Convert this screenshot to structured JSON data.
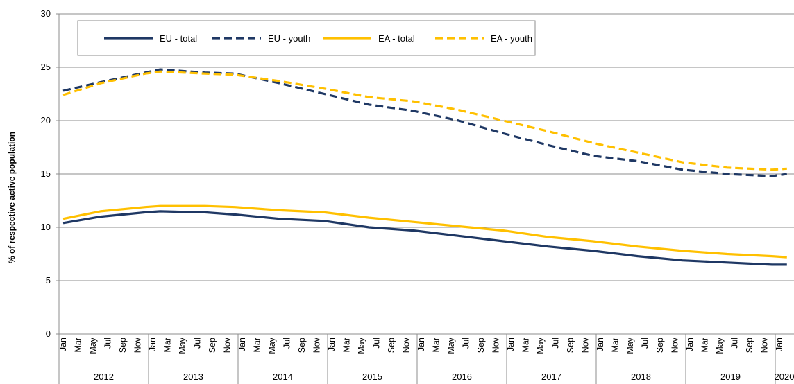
{
  "chart_data": {
    "type": "line",
    "title": "",
    "xlabel": "",
    "ylabel": "% of respective active population",
    "ylim": [
      0,
      30
    ],
    "yticks": [
      0,
      5,
      10,
      15,
      20,
      25,
      30
    ],
    "grid": "horizontal",
    "legend_position": "top-left",
    "years": [
      "2012",
      "2013",
      "2014",
      "2015",
      "2016",
      "2017",
      "2018",
      "2019",
      "2020"
    ],
    "month_labels": [
      "Jan",
      "Mar",
      "May",
      "Jul",
      "Sep",
      "Nov"
    ],
    "x_range": [
      "2012-01",
      "2020-02"
    ],
    "series": [
      {
        "name": "EU - total",
        "style": "solid",
        "color": "#1f3864",
        "points": [
          [
            "2012-01",
            10.4
          ],
          [
            "2012-06",
            11.0
          ],
          [
            "2012-12",
            11.4
          ],
          [
            "2013-02",
            11.5
          ],
          [
            "2013-08",
            11.4
          ],
          [
            "2013-12",
            11.2
          ],
          [
            "2014-06",
            10.8
          ],
          [
            "2014-12",
            10.6
          ],
          [
            "2015-06",
            10.0
          ],
          [
            "2015-12",
            9.7
          ],
          [
            "2016-06",
            9.2
          ],
          [
            "2016-12",
            8.7
          ],
          [
            "2017-06",
            8.2
          ],
          [
            "2017-12",
            7.8
          ],
          [
            "2018-06",
            7.3
          ],
          [
            "2018-12",
            6.9
          ],
          [
            "2019-06",
            6.7
          ],
          [
            "2019-12",
            6.5
          ],
          [
            "2020-02",
            6.5
          ]
        ]
      },
      {
        "name": "EU - youth",
        "style": "dashed",
        "color": "#1f3864",
        "points": [
          [
            "2012-01",
            22.8
          ],
          [
            "2012-06",
            23.6
          ],
          [
            "2012-12",
            24.5
          ],
          [
            "2013-02",
            24.8
          ],
          [
            "2013-08",
            24.5
          ],
          [
            "2013-12",
            24.4
          ],
          [
            "2014-06",
            23.5
          ],
          [
            "2014-12",
            22.5
          ],
          [
            "2015-06",
            21.5
          ],
          [
            "2015-12",
            20.9
          ],
          [
            "2016-06",
            20.0
          ],
          [
            "2016-12",
            18.8
          ],
          [
            "2017-06",
            17.7
          ],
          [
            "2017-12",
            16.7
          ],
          [
            "2018-06",
            16.2
          ],
          [
            "2018-12",
            15.4
          ],
          [
            "2019-06",
            15.0
          ],
          [
            "2019-12",
            14.8
          ],
          [
            "2020-02",
            15.0
          ]
        ]
      },
      {
        "name": "EA - total",
        "style": "solid",
        "color": "#ffc000",
        "points": [
          [
            "2012-01",
            10.8
          ],
          [
            "2012-06",
            11.5
          ],
          [
            "2012-12",
            11.9
          ],
          [
            "2013-02",
            12.0
          ],
          [
            "2013-08",
            12.0
          ],
          [
            "2013-12",
            11.9
          ],
          [
            "2014-06",
            11.6
          ],
          [
            "2014-12",
            11.4
          ],
          [
            "2015-06",
            10.9
          ],
          [
            "2015-12",
            10.5
          ],
          [
            "2016-06",
            10.1
          ],
          [
            "2016-12",
            9.7
          ],
          [
            "2017-06",
            9.1
          ],
          [
            "2017-12",
            8.7
          ],
          [
            "2018-06",
            8.2
          ],
          [
            "2018-12",
            7.8
          ],
          [
            "2019-06",
            7.5
          ],
          [
            "2019-12",
            7.3
          ],
          [
            "2020-02",
            7.2
          ]
        ]
      },
      {
        "name": "EA - youth",
        "style": "dashed",
        "color": "#ffc000",
        "points": [
          [
            "2012-01",
            22.4
          ],
          [
            "2012-06",
            23.5
          ],
          [
            "2012-12",
            24.4
          ],
          [
            "2013-02",
            24.6
          ],
          [
            "2013-08",
            24.4
          ],
          [
            "2013-12",
            24.3
          ],
          [
            "2014-06",
            23.7
          ],
          [
            "2014-12",
            23.0
          ],
          [
            "2015-06",
            22.2
          ],
          [
            "2015-12",
            21.8
          ],
          [
            "2016-06",
            21.0
          ],
          [
            "2016-12",
            20.0
          ],
          [
            "2017-06",
            19.0
          ],
          [
            "2017-12",
            17.9
          ],
          [
            "2018-06",
            17.0
          ],
          [
            "2018-12",
            16.1
          ],
          [
            "2019-06",
            15.6
          ],
          [
            "2019-12",
            15.4
          ],
          [
            "2020-02",
            15.5
          ]
        ]
      }
    ]
  }
}
